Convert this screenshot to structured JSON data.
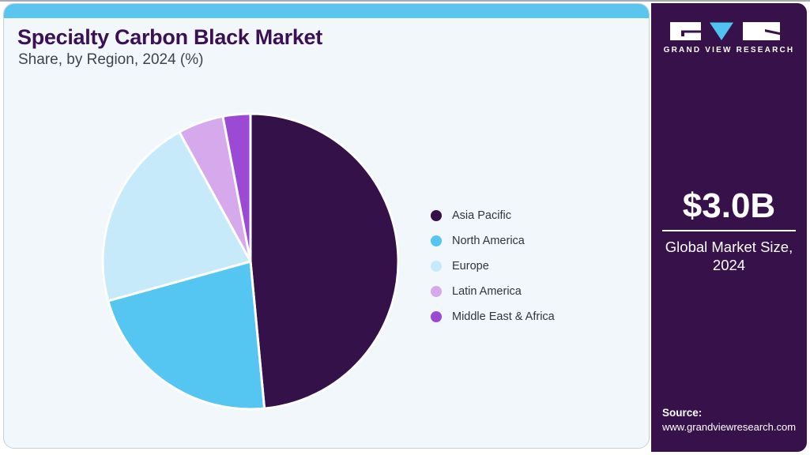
{
  "header": {
    "title": "Specialty Carbon Black Market",
    "subtitle": "Share, by Region, 2024 (%)"
  },
  "chart_data": {
    "type": "pie",
    "title": "Specialty Carbon Black Market Share, by Region, 2024 (%)",
    "value_unit": "percent",
    "start_angle_deg": 0,
    "direction": "clockwise",
    "slices": [
      {
        "label": "Asia Pacific",
        "value": 48.5,
        "color": "#351149"
      },
      {
        "label": "North America",
        "value": 22.2,
        "color": "#55c6f2"
      },
      {
        "label": "Europe",
        "value": 21.3,
        "color": "#c7eafb"
      },
      {
        "label": "Latin America",
        "value": 5.0,
        "color": "#d5a9ec"
      },
      {
        "label": "Middle East & Africa",
        "value": 3.0,
        "color": "#9c49d4"
      }
    ],
    "legend_position": "right",
    "data_labels_shown": false
  },
  "sidebar": {
    "logo_text": "GRAND VIEW RESEARCH",
    "metric_value": "$3.0B",
    "metric_label_line1": "Global Market Size,",
    "metric_label_line2": "2024",
    "source_label": "Source:",
    "source_url": "www.grandviewresearch.com"
  },
  "colors": {
    "title_purple": "#3a1157",
    "subtitle_gray": "#42424e",
    "card_bg": "#f1f7fb",
    "card_border": "#c9cfd8",
    "accent_blue": "#5ac6f0",
    "sidebar_bg": "#37124a",
    "legend_text": "#33333e",
    "logo_v_blue": "#4fc3f0"
  }
}
